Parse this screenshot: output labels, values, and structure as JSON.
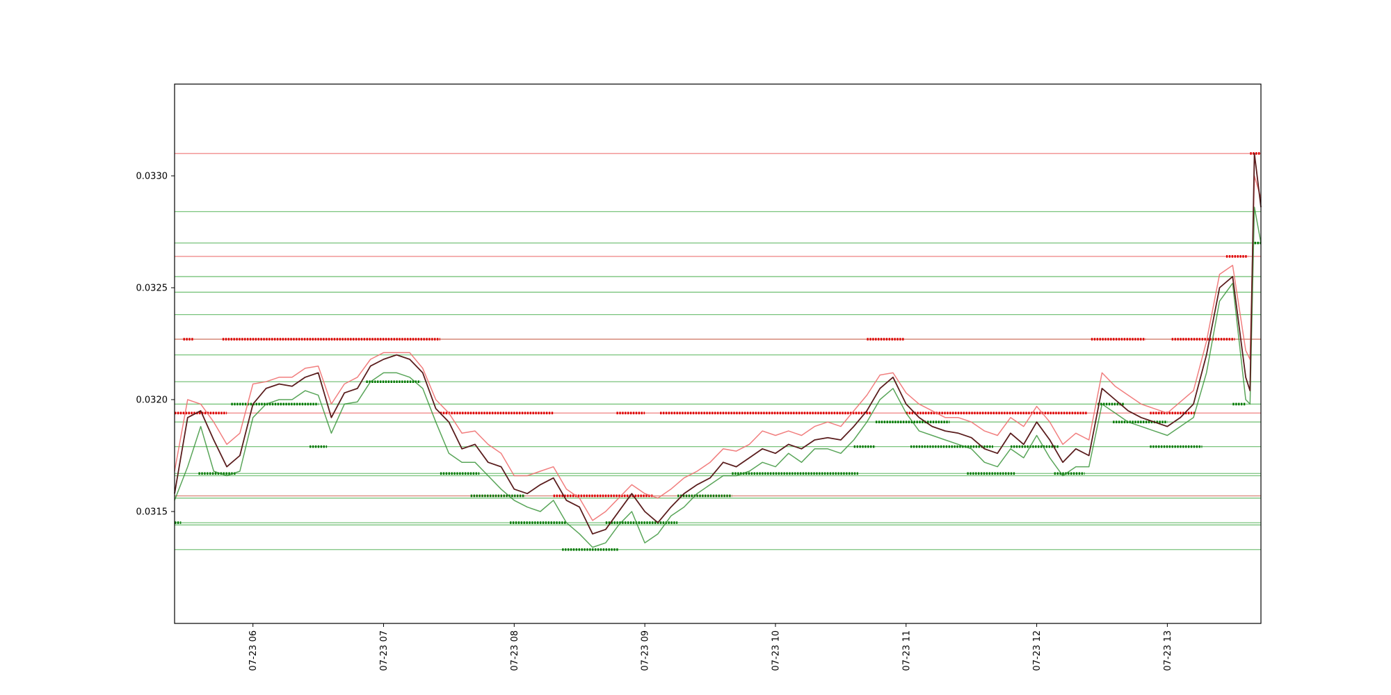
{
  "chart_data": {
    "type": "line",
    "title": "",
    "xlabel": "",
    "ylabel": "",
    "x_range": [
      "2023-07-23 05:24",
      "2023-07-23 13:43"
    ],
    "ylim": [
      0.031,
      0.03341
    ],
    "grid": false,
    "legend": "none",
    "x_tick_labels": [
      "07-23 06",
      "07-23 07",
      "07-23 08",
      "07-23 09",
      "07-23 10",
      "07-23 11",
      "07-23 12",
      "07-23 13"
    ],
    "y_tick_labels": [
      "0.0315",
      "0.0320",
      "0.0325",
      "0.0330"
    ],
    "colors": {
      "close": "#5a1d1d",
      "high": "#f07070",
      "low": "#2f8f2f",
      "resistance_line": "#f08080",
      "support_line": "#4caf50",
      "resistance_marker": "#dd0000",
      "support_marker": "#007700"
    },
    "resistance_levels": [
      0.0331,
      0.03264,
      0.03227,
      0.03194,
      0.03157
    ],
    "support_levels": [
      0.03284,
      0.0327,
      0.03255,
      0.03248,
      0.03238,
      0.03227,
      0.0322,
      0.03208,
      0.03198,
      0.0319,
      0.03179,
      0.03167,
      0.03166,
      0.03157,
      0.03156,
      0.03145,
      0.03144,
      0.03133
    ],
    "series": [
      {
        "key": "close",
        "x": [
          "05:24",
          "05:30",
          "05:36",
          "05:42",
          "05:48",
          "05:54",
          "06:00",
          "06:06",
          "06:12",
          "06:18",
          "06:24",
          "06:30",
          "06:36",
          "06:42",
          "06:48",
          "06:54",
          "07:00",
          "07:06",
          "07:12",
          "07:18",
          "07:24",
          "07:30",
          "07:36",
          "07:42",
          "07:48",
          "07:54",
          "08:00",
          "08:06",
          "08:12",
          "08:18",
          "08:24",
          "08:30",
          "08:36",
          "08:42",
          "08:48",
          "08:54",
          "09:00",
          "09:06",
          "09:12",
          "09:18",
          "09:24",
          "09:30",
          "09:36",
          "09:42",
          "09:48",
          "09:54",
          "10:00",
          "10:06",
          "10:12",
          "10:18",
          "10:24",
          "10:30",
          "10:36",
          "10:42",
          "10:48",
          "10:54",
          "11:00",
          "11:06",
          "11:12",
          "11:18",
          "11:24",
          "11:30",
          "11:36",
          "11:42",
          "11:48",
          "11:54",
          "12:00",
          "12:06",
          "12:12",
          "12:18",
          "12:24",
          "12:30",
          "12:36",
          "12:42",
          "12:48",
          "12:54",
          "13:00",
          "13:06",
          "13:12",
          "13:18",
          "13:24",
          "13:30",
          "13:36",
          "13:38",
          "13:40",
          "13:43"
        ],
        "values": [
          0.03158,
          0.03192,
          0.03195,
          0.03182,
          0.0317,
          0.03175,
          0.03198,
          0.03205,
          0.03207,
          0.03206,
          0.0321,
          0.03212,
          0.03192,
          0.03203,
          0.03205,
          0.03215,
          0.03218,
          0.0322,
          0.03218,
          0.03212,
          0.03196,
          0.0319,
          0.03178,
          0.0318,
          0.03172,
          0.0317,
          0.0316,
          0.03158,
          0.03162,
          0.03165,
          0.03155,
          0.03152,
          0.0314,
          0.03142,
          0.0315,
          0.03158,
          0.0315,
          0.03145,
          0.03152,
          0.03158,
          0.03162,
          0.03165,
          0.03172,
          0.0317,
          0.03174,
          0.03178,
          0.03176,
          0.0318,
          0.03178,
          0.03182,
          0.03183,
          0.03182,
          0.03188,
          0.03195,
          0.03205,
          0.0321,
          0.03198,
          0.03192,
          0.03188,
          0.03186,
          0.03185,
          0.03183,
          0.03178,
          0.03176,
          0.03185,
          0.0318,
          0.0319,
          0.03182,
          0.03172,
          0.03178,
          0.03175,
          0.03205,
          0.032,
          0.03195,
          0.03192,
          0.0319,
          0.03188,
          0.03192,
          0.03198,
          0.0322,
          0.0325,
          0.03255,
          0.0321,
          0.03204,
          0.0331,
          0.03286
        ]
      },
      {
        "key": "high",
        "x": [
          "05:24",
          "05:30",
          "05:36",
          "05:42",
          "05:48",
          "05:54",
          "06:00",
          "06:06",
          "06:12",
          "06:18",
          "06:24",
          "06:30",
          "06:36",
          "06:42",
          "06:48",
          "06:54",
          "07:00",
          "07:06",
          "07:12",
          "07:18",
          "07:24",
          "07:30",
          "07:36",
          "07:42",
          "07:48",
          "07:54",
          "08:00",
          "08:06",
          "08:12",
          "08:18",
          "08:24",
          "08:30",
          "08:36",
          "08:42",
          "08:48",
          "08:54",
          "09:00",
          "09:06",
          "09:12",
          "09:18",
          "09:24",
          "09:30",
          "09:36",
          "09:42",
          "09:48",
          "09:54",
          "10:00",
          "10:06",
          "10:12",
          "10:18",
          "10:24",
          "10:30",
          "10:36",
          "10:42",
          "10:48",
          "10:54",
          "11:00",
          "11:06",
          "11:12",
          "11:18",
          "11:24",
          "11:30",
          "11:36",
          "11:42",
          "11:48",
          "11:54",
          "12:00",
          "12:06",
          "12:12",
          "12:18",
          "12:24",
          "12:30",
          "12:36",
          "12:42",
          "12:48",
          "12:54",
          "13:00",
          "13:06",
          "13:12",
          "13:18",
          "13:24",
          "13:30",
          "13:36",
          "13:38",
          "13:40",
          "13:43"
        ],
        "values": [
          0.03168,
          0.032,
          0.03198,
          0.0319,
          0.0318,
          0.03185,
          0.03207,
          0.03208,
          0.0321,
          0.0321,
          0.03214,
          0.03215,
          0.03198,
          0.03207,
          0.0321,
          0.03218,
          0.03221,
          0.03221,
          0.03221,
          0.03214,
          0.032,
          0.03194,
          0.03185,
          0.03186,
          0.0318,
          0.03176,
          0.03166,
          0.03166,
          0.03168,
          0.0317,
          0.0316,
          0.03156,
          0.03146,
          0.0315,
          0.03156,
          0.03162,
          0.03158,
          0.03156,
          0.0316,
          0.03165,
          0.03168,
          0.03172,
          0.03178,
          0.03177,
          0.0318,
          0.03186,
          0.03184,
          0.03186,
          0.03184,
          0.03188,
          0.0319,
          0.03188,
          0.03195,
          0.03202,
          0.03211,
          0.03212,
          0.03203,
          0.03198,
          0.03195,
          0.03192,
          0.03192,
          0.0319,
          0.03186,
          0.03184,
          0.03192,
          0.03188,
          0.03197,
          0.0319,
          0.0318,
          0.03185,
          0.03182,
          0.03212,
          0.03206,
          0.03202,
          0.03198,
          0.03196,
          0.03194,
          0.03199,
          0.03204,
          0.03226,
          0.03256,
          0.0326,
          0.03222,
          0.03218,
          0.033,
          0.0329
        ]
      },
      {
        "key": "low",
        "x": [
          "05:24",
          "05:30",
          "05:36",
          "05:42",
          "05:48",
          "05:54",
          "06:00",
          "06:06",
          "06:12",
          "06:18",
          "06:24",
          "06:30",
          "06:36",
          "06:42",
          "06:48",
          "06:54",
          "07:00",
          "07:06",
          "07:12",
          "07:18",
          "07:24",
          "07:30",
          "07:36",
          "07:42",
          "07:48",
          "07:54",
          "08:00",
          "08:06",
          "08:12",
          "08:18",
          "08:24",
          "08:30",
          "08:36",
          "08:42",
          "08:48",
          "08:54",
          "09:00",
          "09:06",
          "09:12",
          "09:18",
          "09:24",
          "09:30",
          "09:36",
          "09:42",
          "09:48",
          "09:54",
          "10:00",
          "10:06",
          "10:12",
          "10:18",
          "10:24",
          "10:30",
          "10:36",
          "10:42",
          "10:48",
          "10:54",
          "11:00",
          "11:06",
          "11:12",
          "11:18",
          "11:24",
          "11:30",
          "11:36",
          "11:42",
          "11:48",
          "11:54",
          "12:00",
          "12:06",
          "12:12",
          "12:18",
          "12:24",
          "12:30",
          "12:36",
          "12:42",
          "12:48",
          "12:54",
          "13:00",
          "13:06",
          "13:12",
          "13:18",
          "13:24",
          "13:30",
          "13:36",
          "13:38",
          "13:40",
          "13:43"
        ],
        "values": [
          0.03155,
          0.0317,
          0.03188,
          0.03168,
          0.03166,
          0.03168,
          0.03192,
          0.03198,
          0.032,
          0.032,
          0.03204,
          0.03202,
          0.03185,
          0.03198,
          0.03199,
          0.03208,
          0.03212,
          0.03212,
          0.0321,
          0.03205,
          0.0319,
          0.03176,
          0.03172,
          0.03172,
          0.03166,
          0.0316,
          0.03155,
          0.03152,
          0.0315,
          0.03155,
          0.03145,
          0.0314,
          0.03134,
          0.03136,
          0.03144,
          0.0315,
          0.03136,
          0.0314,
          0.03148,
          0.03152,
          0.03158,
          0.03162,
          0.03166,
          0.03166,
          0.03168,
          0.03172,
          0.0317,
          0.03176,
          0.03172,
          0.03178,
          0.03178,
          0.03176,
          0.03182,
          0.0319,
          0.032,
          0.03205,
          0.03194,
          0.03186,
          0.03184,
          0.03182,
          0.0318,
          0.03178,
          0.03172,
          0.0317,
          0.03178,
          0.03174,
          0.03184,
          0.03174,
          0.03166,
          0.0317,
          0.0317,
          0.03198,
          0.03194,
          0.0319,
          0.03188,
          0.03186,
          0.03184,
          0.03188,
          0.03192,
          0.03212,
          0.03244,
          0.03252,
          0.032,
          0.03198,
          0.03286,
          0.0327
        ]
      }
    ],
    "resistance_marker_segments": [
      {
        "level": 0.03227,
        "from": "05:28",
        "to": "05:33"
      },
      {
        "level": 0.03227,
        "from": "05:46",
        "to": "07:26"
      },
      {
        "level": 0.03194,
        "from": "05:24",
        "to": "05:48"
      },
      {
        "level": 0.03194,
        "from": "07:26",
        "to": "08:18"
      },
      {
        "level": 0.03194,
        "from": "08:47",
        "to": "09:00"
      },
      {
        "level": 0.03194,
        "from": "09:07",
        "to": "10:44"
      },
      {
        "level": 0.03157,
        "from": "08:18",
        "to": "09:04"
      },
      {
        "level": 0.03227,
        "from": "10:42",
        "to": "10:59"
      },
      {
        "level": 0.03194,
        "from": "11:00",
        "to": "12:23"
      },
      {
        "level": 0.03227,
        "from": "12:25",
        "to": "12:50"
      },
      {
        "level": 0.03227,
        "from": "13:02",
        "to": "13:31"
      },
      {
        "level": 0.03194,
        "from": "12:52",
        "to": "13:13"
      },
      {
        "level": 0.03264,
        "from": "13:27",
        "to": "13:37"
      },
      {
        "level": 0.0331,
        "from": "13:38",
        "to": "13:43"
      }
    ],
    "support_marker_segments": [
      {
        "level": 0.03145,
        "from": "05:24",
        "to": "05:27"
      },
      {
        "level": 0.03167,
        "from": "05:35",
        "to": "05:52"
      },
      {
        "level": 0.03198,
        "from": "05:50",
        "to": "06:30"
      },
      {
        "level": 0.03208,
        "from": "06:52",
        "to": "07:17"
      },
      {
        "level": 0.03179,
        "from": "06:26",
        "to": "06:34"
      },
      {
        "level": 0.03167,
        "from": "07:26",
        "to": "07:44"
      },
      {
        "level": 0.03157,
        "from": "07:40",
        "to": "08:05"
      },
      {
        "level": 0.03145,
        "from": "07:58",
        "to": "08:24"
      },
      {
        "level": 0.03133,
        "from": "08:22",
        "to": "08:48"
      },
      {
        "level": 0.03145,
        "from": "08:42",
        "to": "09:15"
      },
      {
        "level": 0.03157,
        "from": "09:15",
        "to": "09:40"
      },
      {
        "level": 0.03167,
        "from": "09:40",
        "to": "10:38"
      },
      {
        "level": 0.03179,
        "from": "10:36",
        "to": "10:46"
      },
      {
        "level": 0.0319,
        "from": "10:46",
        "to": "11:20"
      },
      {
        "level": 0.03179,
        "from": "11:02",
        "to": "11:40"
      },
      {
        "level": 0.03167,
        "from": "11:28",
        "to": "11:50"
      },
      {
        "level": 0.03179,
        "from": "11:48",
        "to": "12:10"
      },
      {
        "level": 0.03167,
        "from": "12:08",
        "to": "12:22"
      },
      {
        "level": 0.03198,
        "from": "12:28",
        "to": "12:40"
      },
      {
        "level": 0.0319,
        "from": "12:35",
        "to": "13:00"
      },
      {
        "level": 0.03179,
        "from": "12:52",
        "to": "13:16"
      },
      {
        "level": 0.03198,
        "from": "13:30",
        "to": "13:36"
      },
      {
        "level": 0.0327,
        "from": "13:40",
        "to": "13:43"
      }
    ]
  }
}
